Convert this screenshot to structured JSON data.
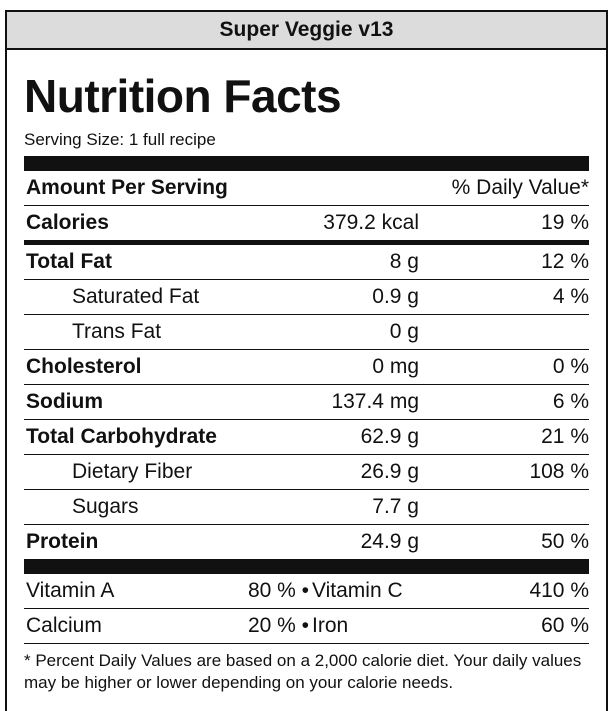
{
  "product_name": "Super Veggie v13",
  "heading": "Nutrition Facts",
  "serving_size": "Serving Size: 1 full recipe",
  "header": {
    "amount_per_serving": "Amount Per Serving",
    "daily_value": "% Daily Value*"
  },
  "calories": {
    "label": "Calories",
    "amount": "379.2 kcal",
    "dv": "19 %"
  },
  "nutrients": [
    {
      "label": "Total Fat",
      "amount": "8 g",
      "dv": "12 %"
    },
    {
      "label": "Saturated Fat",
      "amount": "0.9 g",
      "dv": "4 %"
    },
    {
      "label": "Trans Fat",
      "amount": "0 g",
      "dv": ""
    },
    {
      "label": "Cholesterol",
      "amount": "0 mg",
      "dv": "0 %"
    },
    {
      "label": "Sodium",
      "amount": "137.4 mg",
      "dv": "6 %"
    },
    {
      "label": "Total Carbohydrate",
      "amount": "62.9 g",
      "dv": "21 %"
    },
    {
      "label": "Dietary Fiber",
      "amount": "26.9 g",
      "dv": "108 %"
    },
    {
      "label": "Sugars",
      "amount": "7.7 g",
      "dv": ""
    },
    {
      "label": "Protein",
      "amount": "24.9 g",
      "dv": "50 %"
    }
  ],
  "vitamins": [
    {
      "left_label": "Vitamin A",
      "left_value": "80 % •",
      "right_label": "Vitamin C",
      "right_value": "410 %"
    },
    {
      "left_label": "Calcium",
      "left_value": "20 % •",
      "right_label": "Iron",
      "right_value": "60 %"
    }
  ],
  "footnote": "* Percent Daily Values are based on a 2,000 calorie diet. Your daily values may be higher or lower depending on your calorie needs."
}
